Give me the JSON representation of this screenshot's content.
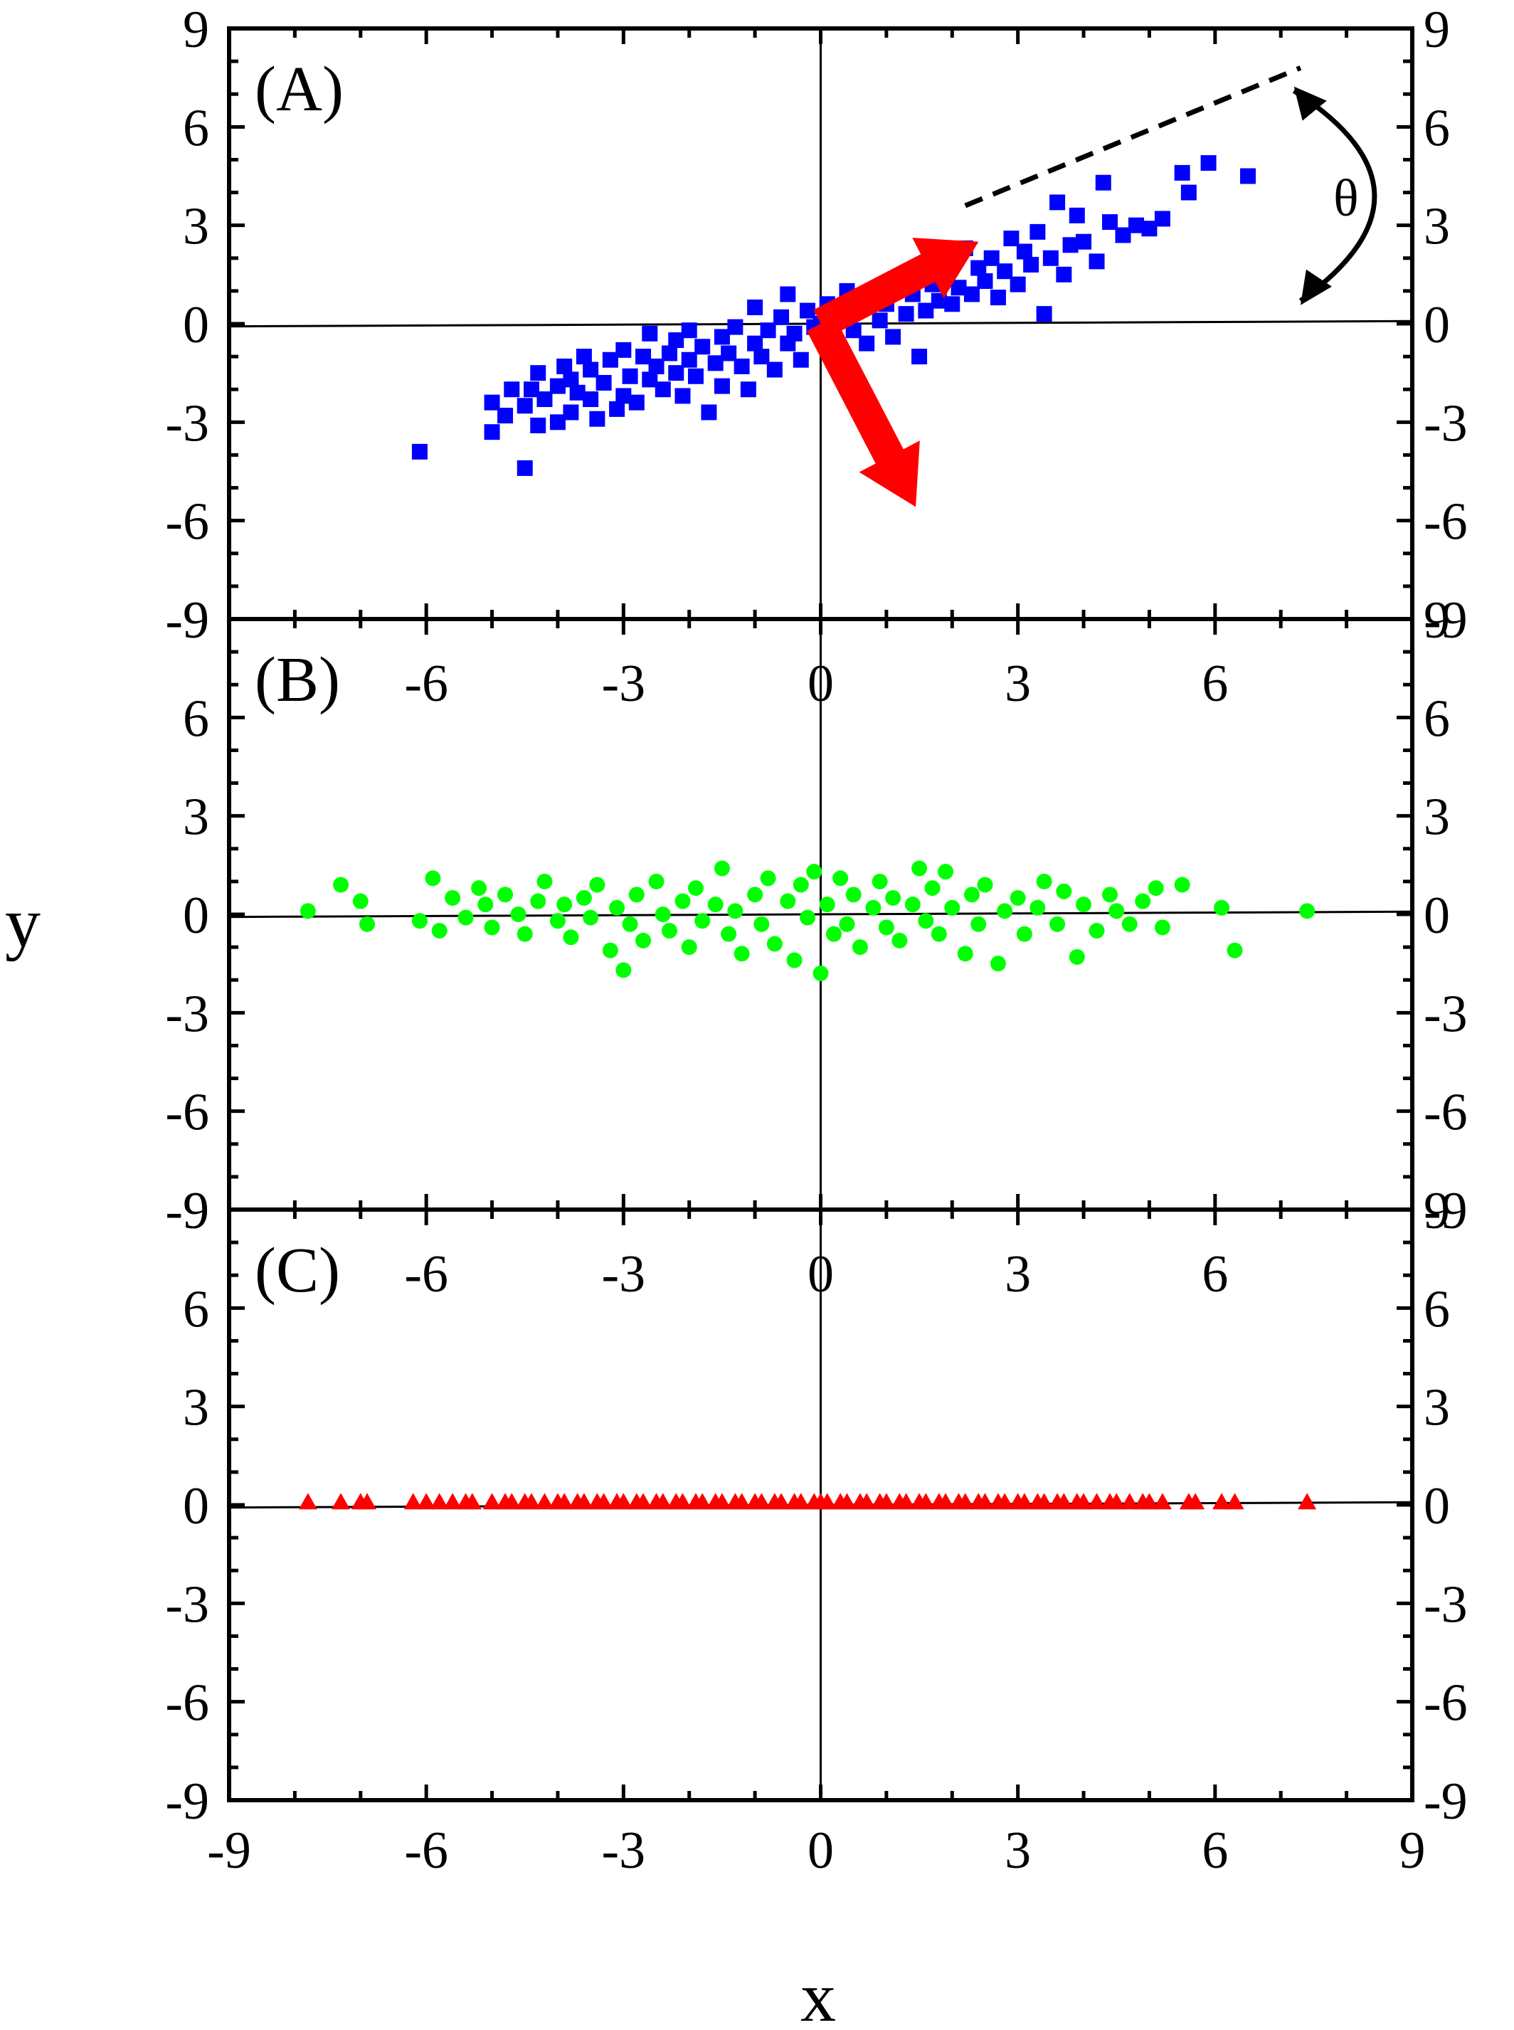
{
  "figure": {
    "xlabel": "x",
    "ylabel": "y",
    "theta_label": "θ"
  },
  "chart_data": [
    {
      "type": "scatter",
      "panel_label": "(A)",
      "xlim": [
        -9,
        9
      ],
      "ylim": [
        -9,
        9
      ],
      "x_ticks": [
        -9,
        -6,
        -3,
        0,
        3,
        6,
        9
      ],
      "y_ticks": [
        -9,
        -6,
        -3,
        0,
        3,
        6,
        9
      ],
      "inner_x_tick_labels": [],
      "marker": "square",
      "color": "#0000ff",
      "annotations": [
        "red principal-axis arrows",
        "dashed line along first principal axis",
        "angle θ between dashed line and x axis"
      ],
      "x": [
        -6.1,
        -5.0,
        -5.0,
        -4.8,
        -4.7,
        -4.5,
        -4.5,
        -4.4,
        -4.3,
        -4.3,
        -4.2,
        -4.0,
        -4.0,
        -3.9,
        -3.8,
        -3.8,
        -3.7,
        -3.6,
        -3.5,
        -3.5,
        -3.4,
        -3.3,
        -3.2,
        -3.1,
        -3.0,
        -3.0,
        -2.9,
        -2.8,
        -2.7,
        -2.6,
        -2.6,
        -2.5,
        -2.4,
        -2.3,
        -2.2,
        -2.2,
        -2.1,
        -2.0,
        -2.0,
        -1.9,
        -1.8,
        -1.7,
        -1.6,
        -1.5,
        -1.5,
        -1.4,
        -1.3,
        -1.2,
        -1.1,
        -1.0,
        -1.0,
        -0.9,
        -0.8,
        -0.7,
        -0.6,
        -0.5,
        -0.5,
        -0.4,
        -0.3,
        -0.2,
        -0.1,
        0.0,
        0.1,
        0.2,
        0.3,
        0.4,
        0.5,
        0.6,
        0.7,
        0.8,
        0.9,
        1.0,
        1.1,
        1.2,
        1.3,
        1.4,
        1.5,
        1.6,
        1.7,
        1.8,
        1.9,
        2.0,
        2.1,
        2.2,
        2.3,
        2.4,
        2.5,
        2.6,
        2.7,
        2.8,
        2.9,
        3.0,
        3.1,
        3.2,
        3.3,
        3.4,
        3.5,
        3.6,
        3.7,
        3.8,
        3.9,
        4.0,
        4.2,
        4.3,
        4.4,
        4.6,
        4.8,
        5.0,
        5.2,
        5.5,
        5.6,
        5.9,
        6.5
      ],
      "y": [
        -3.9,
        -3.3,
        -2.4,
        -2.8,
        -2.0,
        -2.5,
        -4.4,
        -2.0,
        -3.1,
        -1.5,
        -2.3,
        -1.9,
        -3.0,
        -1.3,
        -2.7,
        -1.7,
        -2.1,
        -1.0,
        -2.3,
        -1.4,
        -2.9,
        -1.8,
        -1.1,
        -2.6,
        -2.2,
        -0.8,
        -1.6,
        -2.4,
        -1.0,
        -1.7,
        -0.3,
        -1.3,
        -2.0,
        -0.9,
        -1.5,
        -0.5,
        -2.2,
        -1.1,
        -0.2,
        -1.6,
        -0.7,
        -2.7,
        -1.2,
        -0.4,
        -1.9,
        -0.9,
        -0.1,
        -1.3,
        -2.0,
        -0.6,
        0.5,
        -1.0,
        -0.2,
        -1.4,
        0.2,
        -0.6,
        0.9,
        -0.3,
        -1.1,
        0.4,
        -0.1,
        0.0,
        0.6,
        -0.5,
        0.2,
        1.0,
        -0.2,
        0.5,
        -0.6,
        0.9,
        0.1,
        0.6,
        -0.4,
        1.3,
        0.3,
        0.9,
        -1.0,
        0.4,
        1.2,
        0.7,
        1.8,
        0.6,
        1.1,
        2.3,
        0.9,
        1.7,
        1.3,
        2.0,
        0.8,
        1.6,
        2.6,
        1.2,
        2.2,
        1.8,
        2.8,
        0.3,
        2.0,
        3.7,
        1.5,
        2.4,
        3.3,
        2.5,
        1.9,
        4.3,
        3.1,
        2.7,
        3.0,
        2.9,
        3.2,
        4.6,
        4.0,
        4.9,
        4.5
      ]
    },
    {
      "type": "scatter",
      "panel_label": "(B)",
      "xlim": [
        -9,
        9
      ],
      "ylim": [
        -9,
        9
      ],
      "x_ticks": [
        -9,
        -6,
        -3,
        0,
        3,
        6,
        9
      ],
      "y_ticks": [
        -9,
        -6,
        -3,
        0,
        3,
        6,
        9
      ],
      "inner_x_tick_labels": [
        -6,
        -3,
        0,
        3,
        6
      ],
      "marker": "circle",
      "color": "#00ff00",
      "x": [
        -7.8,
        -7.3,
        -7.0,
        -6.9,
        -6.1,
        -5.9,
        -5.8,
        -5.6,
        -5.4,
        -5.2,
        -5.1,
        -5.0,
        -4.8,
        -4.6,
        -4.5,
        -4.3,
        -4.2,
        -4.0,
        -3.9,
        -3.8,
        -3.6,
        -3.5,
        -3.4,
        -3.2,
        -3.1,
        -3.0,
        -2.9,
        -2.8,
        -2.7,
        -2.5,
        -2.4,
        -2.3,
        -2.1,
        -2.0,
        -1.9,
        -1.8,
        -1.6,
        -1.5,
        -1.4,
        -1.3,
        -1.2,
        -1.0,
        -0.9,
        -0.8,
        -0.7,
        -0.5,
        -0.4,
        -0.3,
        -0.2,
        -0.1,
        0.0,
        0.1,
        0.2,
        0.3,
        0.4,
        0.5,
        0.6,
        0.8,
        0.9,
        1.0,
        1.1,
        1.2,
        1.4,
        1.5,
        1.6,
        1.7,
        1.8,
        1.9,
        2.0,
        2.2,
        2.3,
        2.4,
        2.5,
        2.7,
        2.8,
        3.0,
        3.1,
        3.3,
        3.4,
        3.6,
        3.7,
        3.9,
        4.0,
        4.2,
        4.4,
        4.5,
        4.7,
        4.9,
        5.1,
        5.2,
        5.5,
        6.1,
        6.3,
        7.4
      ],
      "y": [
        0.1,
        0.9,
        0.4,
        -0.3,
        -0.2,
        1.1,
        -0.5,
        0.5,
        -0.1,
        0.8,
        0.3,
        -0.4,
        0.6,
        0.0,
        -0.6,
        0.4,
        1.0,
        -0.2,
        0.3,
        -0.7,
        0.5,
        -0.1,
        0.9,
        -1.1,
        0.2,
        -1.7,
        -0.3,
        0.6,
        -0.8,
        1.0,
        0.0,
        -0.5,
        0.4,
        -1.0,
        0.8,
        -0.2,
        0.3,
        1.4,
        -0.6,
        0.1,
        -1.2,
        0.6,
        -0.3,
        1.1,
        -0.9,
        0.4,
        -1.4,
        0.9,
        -0.1,
        1.3,
        -1.8,
        0.3,
        -0.6,
        1.1,
        -0.3,
        0.6,
        -1.0,
        0.2,
        1.0,
        -0.4,
        0.5,
        -0.8,
        0.3,
        1.4,
        -0.2,
        0.8,
        -0.6,
        1.3,
        0.2,
        -1.2,
        0.6,
        -0.3,
        0.9,
        -1.5,
        0.1,
        0.5,
        -0.6,
        0.2,
        1.0,
        -0.3,
        0.7,
        -1.3,
        0.3,
        -0.5,
        0.6,
        0.1,
        -0.3,
        0.4,
        0.8,
        -0.4,
        0.9,
        0.2,
        -1.1,
        0.1
      ]
    },
    {
      "type": "scatter",
      "panel_label": "(C)",
      "xlim": [
        -9,
        9
      ],
      "ylim": [
        -9,
        9
      ],
      "x_ticks": [
        -9,
        -6,
        -3,
        0,
        3,
        6,
        9
      ],
      "y_ticks": [
        -9,
        -6,
        -3,
        0,
        3,
        6,
        9
      ],
      "inner_x_tick_labels": [
        -6,
        -3,
        0,
        3,
        6
      ],
      "marker": "triangle",
      "color": "#ff0000",
      "x": [
        -7.8,
        -7.3,
        -7.0,
        -6.9,
        -6.2,
        -6.0,
        -5.8,
        -5.6,
        -5.4,
        -5.3,
        -5.0,
        -4.8,
        -4.7,
        -4.5,
        -4.4,
        -4.2,
        -4.0,
        -3.9,
        -3.7,
        -3.6,
        -3.4,
        -3.3,
        -3.1,
        -3.0,
        -2.8,
        -2.7,
        -2.5,
        -2.4,
        -2.2,
        -2.1,
        -1.9,
        -1.8,
        -1.6,
        -1.5,
        -1.3,
        -1.2,
        -1.0,
        -0.9,
        -0.7,
        -0.6,
        -0.4,
        -0.3,
        -0.1,
        0.0,
        0.1,
        0.3,
        0.4,
        0.6,
        0.7,
        0.9,
        1.0,
        1.2,
        1.3,
        1.5,
        1.6,
        1.8,
        1.9,
        2.1,
        2.2,
        2.4,
        2.5,
        2.7,
        2.8,
        3.0,
        3.1,
        3.3,
        3.4,
        3.6,
        3.7,
        3.9,
        4.0,
        4.2,
        4.4,
        4.5,
        4.7,
        4.9,
        5.0,
        5.2,
        5.6,
        5.7,
        6.1,
        6.3,
        7.4
      ],
      "y": [
        0.08,
        0.08,
        0.08,
        0.08,
        0.08,
        0.08,
        0.08,
        0.08,
        0.08,
        0.08,
        0.08,
        0.08,
        0.08,
        0.08,
        0.08,
        0.08,
        0.08,
        0.08,
        0.08,
        0.08,
        0.08,
        0.08,
        0.08,
        0.08,
        0.08,
        0.08,
        0.08,
        0.08,
        0.08,
        0.08,
        0.08,
        0.08,
        0.08,
        0.08,
        0.08,
        0.08,
        0.08,
        0.08,
        0.08,
        0.08,
        0.08,
        0.08,
        0.08,
        0.08,
        0.08,
        0.08,
        0.08,
        0.08,
        0.08,
        0.08,
        0.08,
        0.08,
        0.08,
        0.08,
        0.08,
        0.08,
        0.08,
        0.08,
        0.08,
        0.08,
        0.08,
        0.08,
        0.08,
        0.08,
        0.08,
        0.08,
        0.08,
        0.08,
        0.08,
        0.08,
        0.08,
        0.08,
        0.08,
        0.08,
        0.08,
        0.08,
        0.08,
        0.08,
        0.08,
        0.08,
        0.08,
        0.08,
        0.08
      ]
    }
  ]
}
